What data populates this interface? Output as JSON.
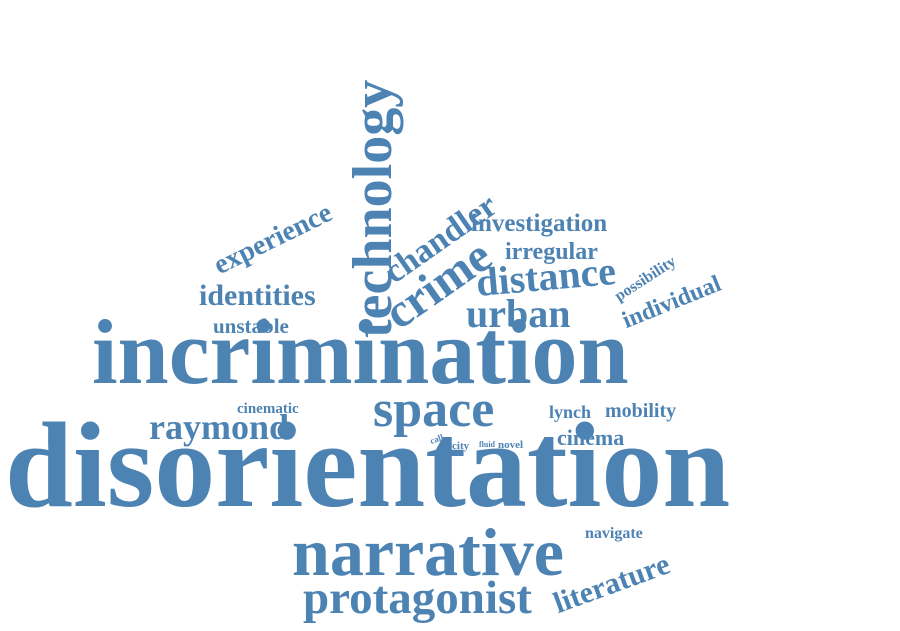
{
  "word_cloud": {
    "color": "#4d83b3",
    "words": [
      "technology",
      "experience",
      "chandler",
      "investigation",
      "irregular",
      "possibility",
      "crime",
      "distance",
      "individual",
      "identities",
      "unstable",
      "urban",
      "incrimination",
      "cinematic",
      "raymond",
      "space",
      "lynch",
      "mobility",
      "call",
      "city",
      "fluid",
      "novel",
      "cinema",
      "disorientation",
      "navigate",
      "narrative",
      "literature",
      "protagonist"
    ]
  }
}
